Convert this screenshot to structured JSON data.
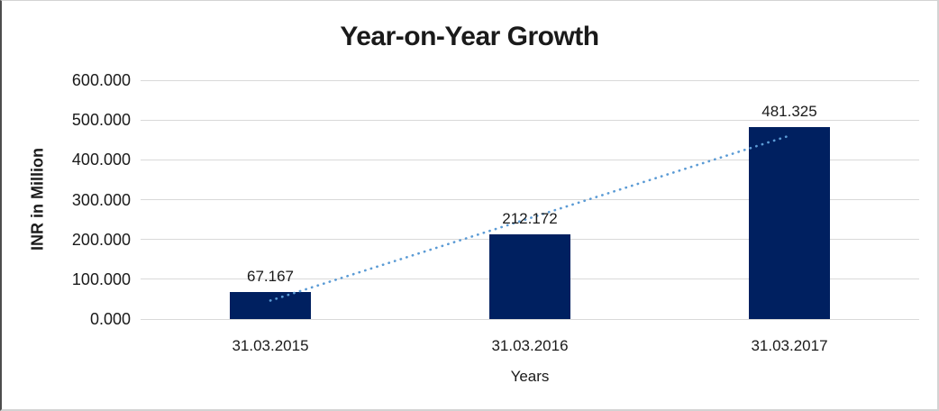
{
  "chart_data": {
    "type": "bar",
    "title": "Year-on-Year Growth",
    "categories": [
      "31.03.2015",
      "31.03.2016",
      "31.03.2017"
    ],
    "values": [
      67167,
      212172,
      481325
    ],
    "value_labels": [
      "67.167",
      "212.172",
      "481.325"
    ],
    "xlabel": "Years",
    "ylabel": "INR in Million",
    "ylim": [
      0,
      600000
    ],
    "y_ticks": [
      {
        "value": 600000,
        "label": "600.000"
      },
      {
        "value": 500000,
        "label": "500.000"
      },
      {
        "value": 400000,
        "label": "400.000"
      },
      {
        "value": 300000,
        "label": "300.000"
      },
      {
        "value": 200000,
        "label": "200.000"
      },
      {
        "value": 100000,
        "label": "100.000"
      },
      {
        "value": 0,
        "label": "0.000"
      }
    ],
    "grid": "horizontal",
    "legend": "none",
    "trendline": {
      "type": "linear",
      "style": "dotted"
    },
    "colors": {
      "bar": "#002060",
      "trendline": "#5b9bd5",
      "gridline": "#d9d9d9",
      "text": "#1a1a1a"
    }
  }
}
